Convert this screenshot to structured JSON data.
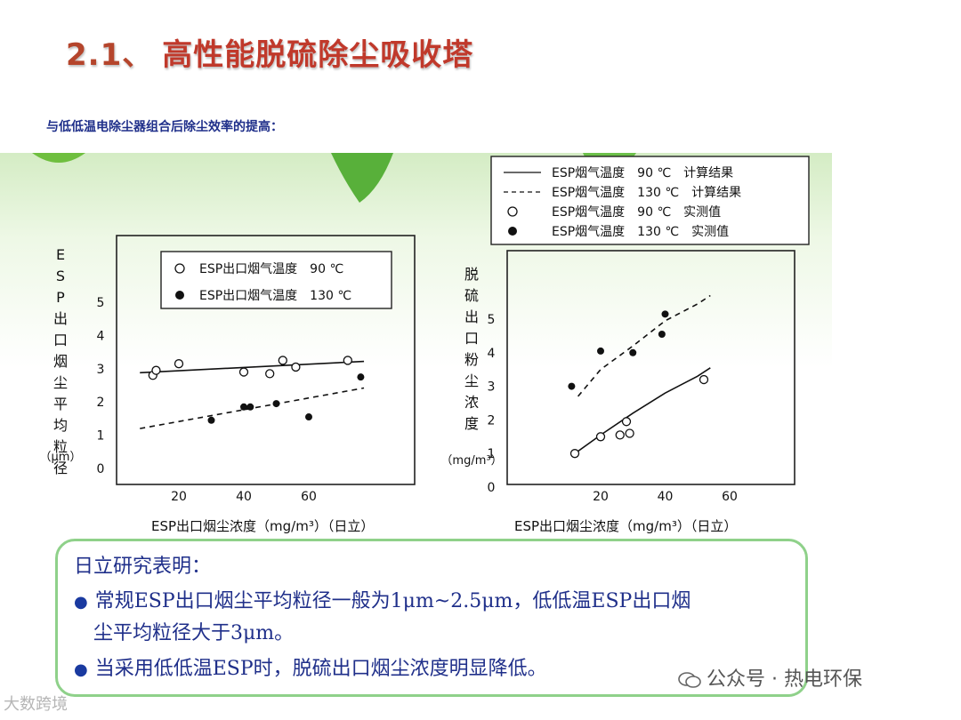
{
  "title": {
    "number": "2.1、",
    "text": "高性能脱硫除尘吸收塔"
  },
  "subtitle": "与低低温电除尘器组合后除尘效率的提高：",
  "note": {
    "heading": "日立研究表明：",
    "bullet1_line1": "常规ESP出口烟尘平均粒径一般为1μm~2.5μm，低低温ESP出口烟",
    "bullet1_line2": "尘平均粒径大于3μm。",
    "bullet2": "当采用低低温ESP时，脱硫出口烟尘浓度明显降低。"
  },
  "watermark_right": "公众号 · 热电环保",
  "watermark_left": "大数跨境",
  "chart_data": [
    {
      "type": "scatter",
      "ylabel": "ESP出口烟尘平均粒径",
      "yunit": "（μm）",
      "xlabel": "ESP出口烟尘浓度（mg/m³）（日立）",
      "xticks": [
        20,
        40,
        60
      ],
      "yticks": [
        0,
        1,
        2,
        3,
        4,
        5
      ],
      "xlim": [
        5,
        80
      ],
      "ylim": [
        0,
        5.5
      ],
      "legend": [
        {
          "name": "ESP出口烟气温度　90 ℃",
          "marker": "open"
        },
        {
          "name": "ESP出口烟气温度　130 ℃",
          "marker": "filled"
        }
      ],
      "series": [
        {
          "name": "ESP出口烟气温度　90 ℃",
          "marker": "open",
          "points": [
            [
              12,
              2.8
            ],
            [
              13,
              2.95
            ],
            [
              20,
              3.15
            ],
            [
              40,
              2.9
            ],
            [
              48,
              2.85
            ],
            [
              52,
              3.25
            ],
            [
              56,
              3.05
            ],
            [
              72,
              3.25
            ]
          ]
        },
        {
          "name": "ESP出口烟气温度　130 ℃",
          "marker": "filled",
          "points": [
            [
              30,
              1.45
            ],
            [
              40,
              1.85
            ],
            [
              42,
              1.85
            ],
            [
              50,
              1.95
            ],
            [
              60,
              1.55
            ],
            [
              76,
              2.75
            ]
          ]
        }
      ],
      "fits": [
        {
          "series": "ESP出口烟气温度　90 ℃",
          "style": "solid",
          "from": [
            8,
            2.88
          ],
          "to": [
            77,
            3.22
          ]
        },
        {
          "series": "ESP出口烟气温度　130 ℃",
          "style": "dashed",
          "from": [
            8,
            1.2
          ],
          "to": [
            77,
            2.42
          ]
        }
      ]
    },
    {
      "type": "scatter",
      "ylabel": "脱硫出口粉尘浓度",
      "yunit": "（mg/m³）",
      "xlabel": "ESP出口烟尘浓度（mg/m³）（日立）",
      "xticks": [
        20,
        40,
        60
      ],
      "yticks": [
        0,
        1,
        2,
        3,
        4,
        5
      ],
      "xlim": [
        0,
        80
      ],
      "ylim": [
        0,
        5.5
      ],
      "legend": [
        {
          "name": "ESP烟气温度　90 ℃　计算结果",
          "style": "solid"
        },
        {
          "name": "ESP烟气温度　130 ℃　计算结果",
          "style": "dashed"
        },
        {
          "name": "ESP烟气温度　90 ℃　实测值",
          "marker": "open"
        },
        {
          "name": "ESP烟气温度　130 ℃　实测值",
          "marker": "filled"
        }
      ],
      "series": [
        {
          "name": "ESP烟气温度　90 ℃　实测值",
          "marker": "open",
          "points": [
            [
              12,
              1.0
            ],
            [
              20,
              1.5
            ],
            [
              26,
              1.55
            ],
            [
              28,
              1.95
            ],
            [
              29,
              1.6
            ],
            [
              52,
              3.2
            ]
          ]
        },
        {
          "name": "ESP烟气温度　130 ℃　实测值",
          "marker": "filled",
          "points": [
            [
              11,
              3.0
            ],
            [
              20,
              4.05
            ],
            [
              30,
              4.0
            ],
            [
              39,
              4.55
            ],
            [
              40,
              5.15
            ]
          ]
        }
      ],
      "curves": [
        {
          "name": "ESP烟气温度　90 ℃　计算结果",
          "style": "solid",
          "points": [
            [
              12,
              1.0
            ],
            [
              20,
              1.55
            ],
            [
              30,
              2.2
            ],
            [
              40,
              2.8
            ],
            [
              50,
              3.3
            ],
            [
              54,
              3.55
            ]
          ]
        },
        {
          "name": "ESP烟气温度　130 ℃　计算结果",
          "style": "dashed",
          "points": [
            [
              13,
              2.7
            ],
            [
              20,
              3.5
            ],
            [
              30,
              4.2
            ],
            [
              40,
              4.95
            ],
            [
              50,
              5.45
            ],
            [
              54,
              5.7
            ]
          ]
        }
      ]
    }
  ]
}
